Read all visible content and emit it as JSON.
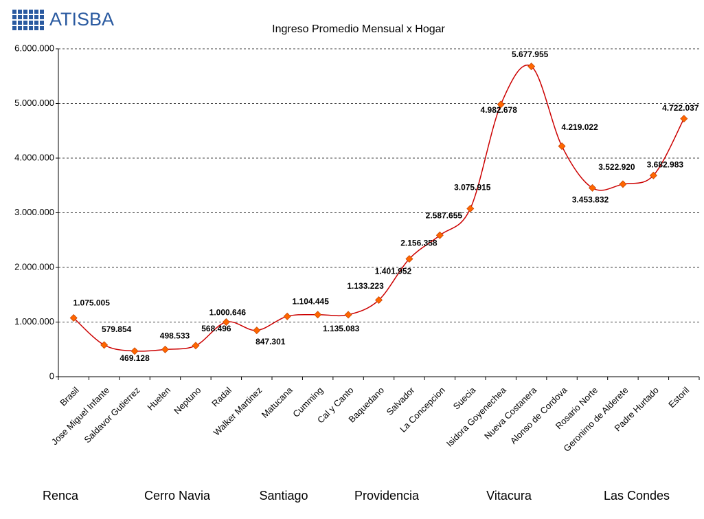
{
  "logo": "ATISBA",
  "chart_data": {
    "type": "line",
    "title": "Ingreso Promedio Mensual x Hogar",
    "categories": [
      "Brasil",
      "Jose Miguel Infante",
      "Saldavor Gutierrez",
      "Huelen",
      "Neptuno",
      "Radal",
      "Walker Martinez",
      "Matucana",
      "Cumming",
      "Cal y Canto",
      "Baquedano",
      "Salvador",
      "La Concepcion",
      "Suecia",
      "Isidora Goyenechea",
      "Nueva Costanera",
      "Alonso de Cordova",
      "Rosario Norte",
      "Geronimo de Alderete",
      "Padre Hurtado",
      "Estoril"
    ],
    "series": [
      {
        "name": "Ingreso Promedio Mensual x Hogar",
        "color": "#cc0000",
        "marker_color": "#ff6600",
        "values": [
          1075005,
          579854,
          469128,
          498533,
          568496,
          1000646,
          847301,
          1104445,
          1135083,
          1133223,
          1401952,
          2156358,
          2587655,
          3075915,
          4982678,
          5677955,
          4219022,
          3453832,
          3522920,
          3682983,
          4722037
        ],
        "value_labels": [
          "1.075.005",
          "579.854",
          "469.128",
          "498.533",
          "568.496",
          "1.000.646",
          "847.301",
          "1.104.445",
          "1.135.083",
          "1.133.223",
          "1.401.952",
          "2.156.358",
          "2.587.655",
          "3.075.915",
          "4.982.678",
          "5.677.955",
          "4.219.022",
          "3.453.832",
          "3.522.920",
          "3.682.983",
          "4.722.037"
        ]
      }
    ],
    "ylim": [
      0,
      6000000
    ],
    "yticks": [
      0,
      {
        "value": 1000000,
        "label": "1.000.000"
      },
      {
        "value": 2000000,
        "label": "2.000.000"
      },
      {
        "value": 3000000,
        "label": "3.000.000"
      },
      {
        "value": 4000000,
        "label": "4.000.000"
      },
      {
        "value": 5000000,
        "label": "5.000.000"
      },
      {
        "value": 6000000,
        "label": "6.000.000"
      }
    ],
    "grid": true,
    "groups": [
      "Renca",
      "Cerro Navia",
      "Santiago",
      "Providencia",
      "Vitacura",
      "Las Condes"
    ]
  }
}
